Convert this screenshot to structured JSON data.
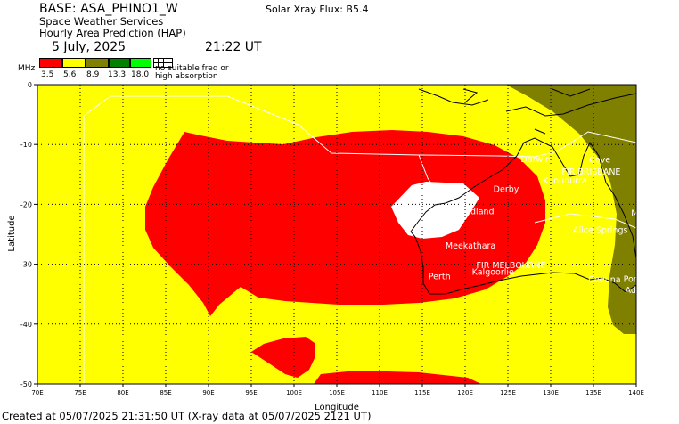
{
  "header": {
    "base": "BASE: ASA_PHINO1_W",
    "flux": "Solar Xray Flux: B5.4",
    "service": "Space Weather Services",
    "product": "Hourly Area Prediction (HAP)",
    "date": "5 July, 2025",
    "time": "21:22 UT"
  },
  "legend": {
    "unit": "MHz",
    "bins": [
      {
        "label": "3.5",
        "color": "#ff0000"
      },
      {
        "label": "5.6",
        "color": "#ffff00"
      },
      {
        "label": "8.9",
        "color": "#808000"
      },
      {
        "label": "13.3",
        "color": "#008000"
      },
      {
        "label": "18.0",
        "color": "#00ff00"
      }
    ],
    "note_line1": "no suitable freq or",
    "note_line2": "high absorption"
  },
  "map": {
    "x_axis": {
      "label": "Longitude",
      "ticks": [
        "70E",
        "75E",
        "80E",
        "85E",
        "90E",
        "95E",
        "100E",
        "105E",
        "110E",
        "115E",
        "120E",
        "125E",
        "130E",
        "135E",
        "140E"
      ],
      "range": [
        70,
        140
      ]
    },
    "y_axis": {
      "label": "Latitude",
      "ticks": [
        "0",
        "-10",
        "-20",
        "-30",
        "-40",
        "-50"
      ],
      "range": [
        -50,
        0
      ]
    },
    "places": [
      {
        "name": "Darwin",
        "lon": 126.5,
        "lat": -12.5
      },
      {
        "name": "Cove",
        "lon": 134.5,
        "lat": -12.6
      },
      {
        "name": "FIR BRISBANE",
        "lon": 131.3,
        "lat": -14.6
      },
      {
        "name": "Kununurra",
        "lon": 129.1,
        "lat": -16.1
      },
      {
        "name": "Derby",
        "lon": 123.3,
        "lat": -17.5
      },
      {
        "name": "Mt Isa",
        "lon": 139.4,
        "lat": -21.5
      },
      {
        "name": "Port Hedland",
        "lon": 117.0,
        "lat": -21.2
      },
      {
        "name": "Alice Springs",
        "lon": 132.6,
        "lat": -24.3
      },
      {
        "name": "Meekathara",
        "lon": 117.7,
        "lat": -26.9
      },
      {
        "name": "FIR MELBOURNE",
        "lon": 121.3,
        "lat": -30.2
      },
      {
        "name": "Kalgoorlie",
        "lon": 120.8,
        "lat": -31.3
      },
      {
        "name": "Perth",
        "lon": 115.7,
        "lat": -32.1
      },
      {
        "name": "Ceduna",
        "lon": 134.4,
        "lat": -32.6
      },
      {
        "name": "Port Pirie",
        "lon": 138.5,
        "lat": -32.5
      },
      {
        "name": "Adelaide",
        "lon": 138.7,
        "lat": -34.4
      }
    ]
  },
  "footer": "Created at 05/07/2025 21:31:50 UT (X-ray data at 05/07/2025 2121 UT)"
}
